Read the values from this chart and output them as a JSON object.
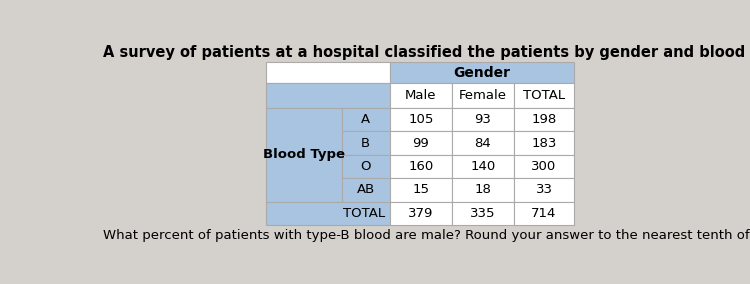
{
  "title": "A survey of patients at a hospital classified the patients by gender and blood type, as seen in the two-way table.",
  "footer": "What percent of patients with type-B blood are male? Round your answer to the nearest tenth of a percent.",
  "title_fontsize": 10.5,
  "footer_fontsize": 9.5,
  "background_color": "#d4d0cb",
  "table_header_bg": "#a8c4e0",
  "table_left_bg": "#a8c4e0",
  "table_cell_bg": "#ffffff",
  "table_border_color": "#aaaaaa",
  "gender_header": "Gender",
  "col_headers": [
    "Male",
    "Female",
    "TOTAL"
  ],
  "row_label_header": "Blood Type",
  "blood_types": [
    "A",
    "B",
    "O",
    "AB",
    "TOTAL"
  ],
  "data": [
    [
      105,
      93,
      198
    ],
    [
      99,
      84,
      183
    ],
    [
      160,
      140,
      300
    ],
    [
      15,
      18,
      33
    ],
    [
      379,
      335,
      714
    ]
  ]
}
